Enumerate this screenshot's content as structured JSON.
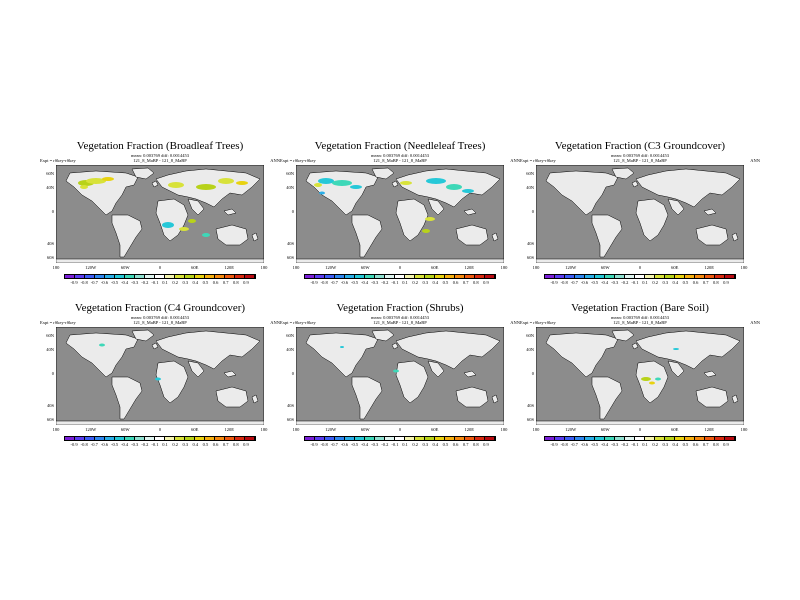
{
  "panels": [
    {
      "title": "Vegetation Fraction (Broadleaf Trees)",
      "stats": "mean: 0.003769 diff: 0.0014453",
      "expt": "Expt = rSkey-rSkey",
      "diff": "121_8_MaBP - 121_8_MaBP",
      "season": "ANN"
    },
    {
      "title": "Vegetation Fraction (Needleleaf Trees)",
      "stats": "mean: 0.003769 diff: 0.0014453",
      "expt": "Expt = rSkey-rSkey",
      "diff": "121_8_MaBP - 121_8_MaBP",
      "season": "ANN"
    },
    {
      "title": "Vegetation Fraction (C3 Groundcover)",
      "stats": "mean: 0.003769 diff: 0.0014453",
      "expt": "Expt = rSkey-rSkey",
      "diff": "121_8_MaBP - 121_8_MaBP",
      "season": "ANN"
    },
    {
      "title": "Vegetation Fraction (C4 Groundcover)",
      "stats": "mean: 0.003769 diff: 0.0014453",
      "expt": "Expt = rSkey-rSkey",
      "diff": "121_8_MaBP - 121_8_MaBP",
      "season": "ANN"
    },
    {
      "title": "Vegetation Fraction (Shrubs)",
      "stats": "mean: 0.003769 diff: 0.0014453",
      "expt": "Expt = rSkey-rSkey",
      "diff": "121_8_MaBP - 121_8_MaBP",
      "season": "ANN"
    },
    {
      "title": "Vegetation Fraction (Bare Soil)",
      "stats": "mean: 0.003769 diff: 0.0014453",
      "expt": "Expt = rSkey-rSkey",
      "diff": "121_8_MaBP - 121_8_MaBP",
      "season": "ANN"
    }
  ],
  "lat_labels": [
    "60N",
    "40N",
    "0",
    "40S",
    "60S"
  ],
  "lon_labels": [
    "180",
    "120W",
    "60W",
    "0",
    "60E",
    "120E",
    "180"
  ],
  "colorbar": {
    "labels": [
      "-0.9",
      "-0.8",
      "-0.7",
      "-0.6",
      "-0.5",
      "-0.4",
      "-0.3",
      "-0.2",
      "-0.1",
      "0.1",
      "0.2",
      "0.3",
      "0.4",
      "0.5",
      "0.6",
      "0.7",
      "0.8",
      "0.9"
    ],
    "colors": [
      "#7a1fd8",
      "#5a3cf0",
      "#3c5cf5",
      "#2e86f0",
      "#2aaee8",
      "#26c8d8",
      "#3ed8b8",
      "#8ee0d0",
      "#dff4f0",
      "#ffffff",
      "#f4f4b0",
      "#d8e23a",
      "#b8d21a",
      "#e8d210",
      "#f6b010",
      "#f68a10",
      "#ee5a10",
      "#d82a10",
      "#b80a10"
    ]
  },
  "colors": {
    "ocean": "#8c8c8c",
    "land": "#ebebeb",
    "coast": "#000000"
  },
  "icons": [
    "world-map"
  ]
}
